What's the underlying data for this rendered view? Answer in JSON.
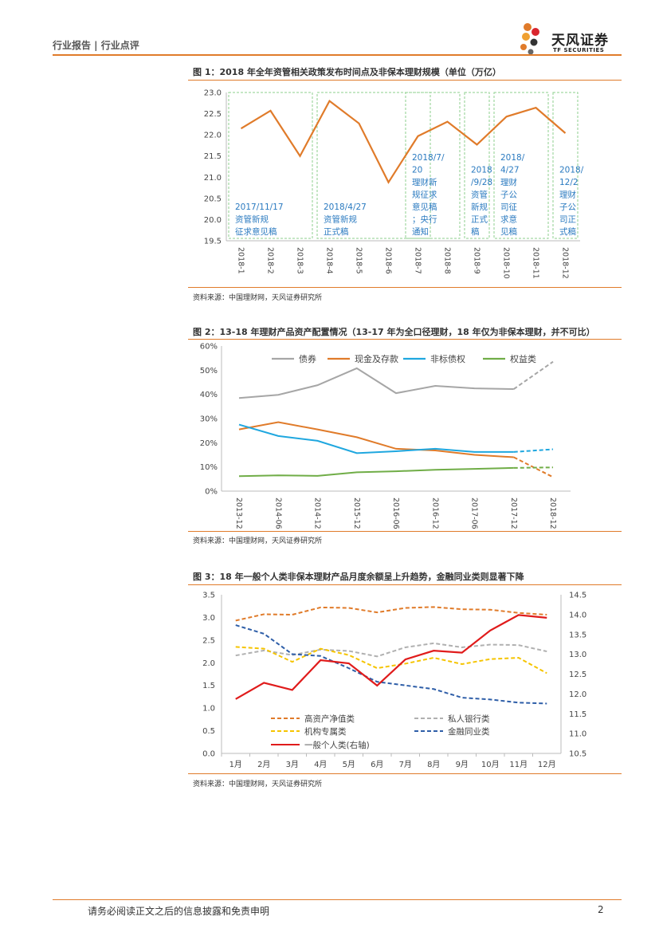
{
  "header": {
    "section": "行业报告 | 行业点评",
    "logo_cn": "天风证券",
    "logo_en": "TF SECURITIES"
  },
  "figure1": {
    "title": "图 1：2018 年全年资管相关政策发布时间点及非保本理财规模（单位（万亿）",
    "source": "资料来源：中国理财网，天风证券研究所"
  },
  "figure2": {
    "title": "图 2：13-18 年理财产品资产配置情况（13-17 年为全口径理财，18 年仅为非保本理财，并不可比）",
    "source": "资料来源：中国理财网，天风证券研究所"
  },
  "figure3": {
    "title": "图 3：18 年一般个人类非保本理财产品月度余额呈上升趋势，金融同业类则显著下降",
    "source": "资料来源：中国理财网，天风证券研究所"
  },
  "footer": {
    "disclaimer": "请务必阅读正文之后的信息披露和免责申明",
    "page": "2"
  },
  "chart_data": [
    {
      "type": "line",
      "title": "2018 年全年资管相关政策发布时间点及非保本理财规模",
      "categories": [
        "2018-1",
        "2018-2",
        "2018-3",
        "2018-4",
        "2018-5",
        "2018-6",
        "2018-7",
        "2018-8",
        "2018-9",
        "2018-10",
        "2018-11",
        "2018-12"
      ],
      "series": [
        {
          "name": "非保本理财规模",
          "color": "#e07b2a",
          "values": [
            22.15,
            22.57,
            21.5,
            22.8,
            22.27,
            20.88,
            21.97,
            22.31,
            21.77,
            22.43,
            22.64,
            22.04
          ]
        }
      ],
      "ylim": [
        19.5,
        23.0
      ],
      "yticks": [
        "19.5",
        "20.0",
        "20.5",
        "21.0",
        "21.5",
        "22.0",
        "22.5",
        "23.0"
      ],
      "annotations": [
        {
          "from": 0,
          "to": 2,
          "lines": [
            "2017/11/17",
            "资管新规",
            "征求意见稿"
          ]
        },
        {
          "from": 3,
          "to": 6,
          "lines": [
            "2018/4/27",
            "资管新规",
            "正式稿"
          ]
        },
        {
          "from": 6,
          "to": 7,
          "lines": [
            "2018/7/",
            "20",
            "理财新",
            "规征求",
            "意见稿",
            "；央行",
            "通知"
          ]
        },
        {
          "from": 8,
          "to": 8,
          "lines": [
            "2018",
            "/9/28",
            "资管",
            "新规",
            "正式",
            "稿"
          ]
        },
        {
          "from": 9,
          "to": 10,
          "lines": [
            "2018/",
            "4/27",
            "理财",
            "子公",
            "司征",
            "求意",
            "见稿"
          ]
        },
        {
          "from": 11,
          "to": 11,
          "lines": [
            "2018/",
            "12/2",
            "理财",
            "子公",
            "司正",
            "式稿"
          ]
        }
      ]
    },
    {
      "type": "line",
      "title": "13-18 年理财产品资产配置情况",
      "categories": [
        "2013-12",
        "2014-06",
        "2014-12",
        "2015-12",
        "2016-06",
        "2016-12",
        "2017-06",
        "2017-12",
        "2018-12"
      ],
      "ylim": [
        0,
        60
      ],
      "yticks": [
        "0%",
        "10%",
        "20%",
        "30%",
        "40%",
        "50%",
        "60%"
      ],
      "series": [
        {
          "name": "债券",
          "color": "#a6a6a6",
          "values": [
            38.5,
            39.8,
            43.8,
            50.8,
            40.5,
            43.5,
            42.5,
            42.2,
            53.5
          ]
        },
        {
          "name": "现金及存款",
          "color": "#e07b2a",
          "values": [
            25.5,
            28.5,
            25.5,
            22.3,
            17.5,
            16.8,
            15.0,
            14.0,
            5.8
          ]
        },
        {
          "name": "非标债权",
          "color": "#1fa7df",
          "values": [
            27.5,
            22.8,
            20.8,
            15.7,
            16.5,
            17.5,
            16.2,
            16.2,
            17.3
          ]
        },
        {
          "name": "权益类",
          "color": "#70ad47",
          "values": [
            6.2,
            6.5,
            6.3,
            7.8,
            8.2,
            8.8,
            9.2,
            9.6,
            9.8
          ]
        }
      ],
      "dashed_last_segment": true
    },
    {
      "type": "line",
      "title": "18 年一般个人类非保本理财产品月度余额",
      "categories": [
        "1月",
        "2月",
        "3月",
        "4月",
        "5月",
        "6月",
        "7月",
        "8月",
        "9月",
        "10月",
        "11月",
        "12月"
      ],
      "ylim": [
        0,
        3.5
      ],
      "yticks": [
        "0.0",
        "0.5",
        "1.0",
        "1.5",
        "2.0",
        "2.5",
        "3.0",
        "3.5"
      ],
      "ylim_right": [
        10.5,
        14.5
      ],
      "yticks_right": [
        "10.5",
        "11.0",
        "11.5",
        "12.0",
        "12.5",
        "13.0",
        "13.5",
        "14.0",
        "14.5"
      ],
      "series": [
        {
          "name": "高资产净值类",
          "color": "#e07b2a",
          "dash": true,
          "axis": "left",
          "values": [
            2.93,
            3.07,
            3.06,
            3.22,
            3.21,
            3.11,
            3.21,
            3.23,
            3.18,
            3.17,
            3.1,
            3.06
          ]
        },
        {
          "name": "私人银行类",
          "color": "#b0b0b0",
          "dash": true,
          "axis": "left",
          "values": [
            2.16,
            2.27,
            2.17,
            2.29,
            2.26,
            2.14,
            2.34,
            2.43,
            2.34,
            2.4,
            2.39,
            2.25
          ]
        },
        {
          "name": "机构专属类",
          "color": "#f5c400",
          "dash": true,
          "axis": "left",
          "values": [
            2.35,
            2.31,
            2.02,
            2.31,
            2.17,
            1.88,
            1.98,
            2.11,
            1.97,
            2.08,
            2.11,
            1.77
          ]
        },
        {
          "name": "金融同业类",
          "color": "#2e5ea8",
          "dash": true,
          "axis": "left",
          "values": [
            2.83,
            2.64,
            2.19,
            2.15,
            1.88,
            1.58,
            1.5,
            1.42,
            1.23,
            1.19,
            1.12,
            1.1
          ]
        },
        {
          "name": "一般个人类(右轴)",
          "color": "#e01b1b",
          "dash": false,
          "axis": "right",
          "values": [
            11.87,
            12.28,
            12.1,
            12.85,
            12.77,
            12.21,
            12.87,
            13.09,
            13.04,
            13.6,
            13.99,
            13.92
          ]
        }
      ]
    }
  ]
}
